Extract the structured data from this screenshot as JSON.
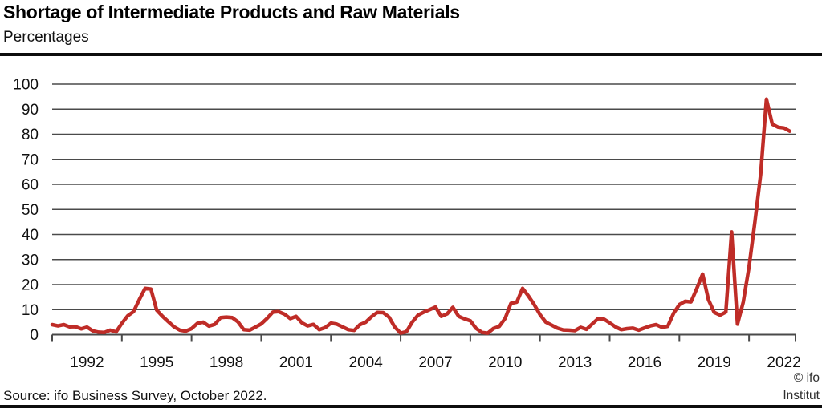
{
  "header": {
    "title": "Shortage of Intermediate Products and Raw Materials",
    "subtitle": "Percentages"
  },
  "footer": {
    "source": "Source: ifo Business Survey, October 2022.",
    "credit_line1": "© ifo",
    "credit_line2": "Institut"
  },
  "chart_data": {
    "type": "line",
    "title": "Shortage of Intermediate Products and Raw Materials",
    "xlabel": "",
    "ylabel": "Percentages",
    "ylim": [
      0,
      100
    ],
    "y_ticks": [
      0,
      10,
      20,
      30,
      40,
      50,
      60,
      70,
      80,
      90,
      100
    ],
    "x_domain": [
      1991,
      2023
    ],
    "x_tick_years": [
      1991,
      1994,
      1997,
      2000,
      2003,
      2006,
      2009,
      2012,
      2015,
      2018,
      2021
    ],
    "x_tick_labels": [
      "1992",
      "1995",
      "1998",
      "2001",
      "2004",
      "2007",
      "2010",
      "2013",
      "2016",
      "2019",
      "2022"
    ],
    "grid": true,
    "legend_position": "none",
    "line_color": "#bf2c27",
    "grid_color": "#4a4a4a",
    "text_color": "#111111",
    "frequency": "quarterly",
    "series": [
      {
        "name": "Shortage of intermediate products and raw materials (%)",
        "start_year": 1991,
        "points_per_year": 4,
        "values": [
          4.0,
          3.5,
          4.0,
          3.1,
          3.2,
          2.3,
          3.0,
          1.5,
          1.0,
          0.9,
          1.8,
          1.1,
          4.5,
          7.5,
          9.2,
          14.0,
          18.5,
          18.2,
          9.8,
          7.3,
          5.2,
          3.1,
          1.8,
          1.4,
          2.4,
          4.5,
          5.0,
          3.4,
          4.1,
          6.8,
          7.0,
          6.8,
          5.1,
          2.0,
          1.8,
          3.0,
          4.3,
          6.5,
          9.0,
          9.2,
          8.2,
          6.4,
          7.3,
          4.7,
          3.5,
          4.1,
          2.0,
          2.8,
          4.6,
          4.2,
          3.1,
          2.0,
          1.7,
          4.0,
          5.0,
          7.2,
          8.9,
          8.8,
          7.0,
          3.0,
          0.6,
          1.2,
          5.0,
          7.8,
          9.0,
          10.0,
          11.0,
          7.3,
          8.3,
          10.9,
          7.3,
          6.3,
          5.5,
          2.5,
          0.9,
          0.6,
          2.5,
          3.3,
          6.5,
          12.5,
          13.0,
          18.5,
          15.5,
          12.0,
          8.0,
          5.0,
          3.8,
          2.6,
          1.9,
          1.8,
          1.6,
          2.9,
          2.1,
          4.3,
          6.4,
          6.2,
          4.7,
          3.1,
          2.0,
          2.4,
          2.6,
          1.8,
          2.7,
          3.5,
          4.0,
          2.9,
          3.3,
          8.5,
          12.0,
          13.3,
          13.1,
          18.4,
          24.2,
          14.0,
          8.9,
          7.8,
          9.0,
          41.0,
          4.2,
          13.0,
          27.0,
          45.0,
          64.0,
          94.0,
          84.0,
          82.8,
          82.5,
          81.2
        ]
      }
    ]
  }
}
